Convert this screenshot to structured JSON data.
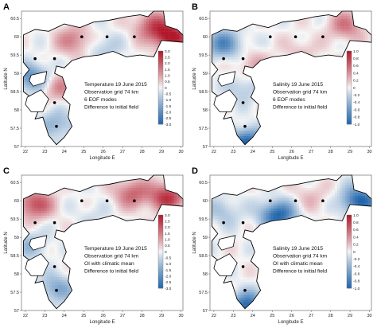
{
  "chart_data": [
    {
      "type": "heatmap",
      "panel_label": "A",
      "annotation": [
        "Temperature 19 June 2015",
        "Observation grid 74 km",
        "6 EOF modes",
        "Difference to initial field"
      ],
      "xlabel": "Longitude E",
      "ylabel": "Latitude N",
      "x_ticks": [
        "22",
        "23",
        "24",
        "25",
        "26",
        "27",
        "28",
        "29",
        "30"
      ],
      "y_ticks": [
        "60.5",
        "60",
        "59.5",
        "59",
        "58.5",
        "58",
        "57.5",
        "57"
      ],
      "xlim": [
        21.8,
        30.1
      ],
      "ylim": [
        57.0,
        60.7
      ],
      "colorbar_ticks": [
        "3.0",
        "2.5",
        "2.0",
        "1.5",
        "1.0",
        "0.5",
        "0",
        "-0.5",
        "-1.0",
        "-1.5",
        "-2.0",
        "-2.5",
        "-3.0"
      ],
      "colorbar_range": [
        -3.0,
        3.0
      ],
      "observation_points": [
        [
          24.9,
          60.0
        ],
        [
          26.2,
          60.0
        ],
        [
          27.6,
          60.0
        ],
        [
          22.5,
          59.4
        ],
        [
          23.5,
          59.4
        ],
        [
          23.5,
          58.2
        ],
        [
          23.6,
          57.55
        ]
      ],
      "field_features": [
        {
          "lon": 29.5,
          "lat": 60.0,
          "value": 3.0
        },
        {
          "lon": 24.5,
          "lat": 59.9,
          "value": 1.5
        },
        {
          "lon": 28.5,
          "lat": 60.3,
          "value": 1.8
        },
        {
          "lon": 22.3,
          "lat": 58.9,
          "value": -2.0
        },
        {
          "lon": 23.8,
          "lat": 58.6,
          "value": 1.2
        },
        {
          "lon": 26.0,
          "lat": 59.7,
          "value": -0.8
        },
        {
          "lon": 23.6,
          "lat": 57.6,
          "value": -1.3
        }
      ]
    },
    {
      "type": "heatmap",
      "panel_label": "B",
      "annotation": [
        "Salinity 19 June 2015",
        "Observation grid 74 km",
        "6 EOF modes",
        "Difference to initial field"
      ],
      "xlabel": "Longitude E",
      "ylabel": "Latitude N",
      "x_ticks": [
        "22",
        "23",
        "24",
        "25",
        "26",
        "27",
        "28",
        "29",
        "30"
      ],
      "y_ticks": [
        "60.5",
        "60",
        "59.5",
        "59",
        "58.5",
        "58",
        "57.5",
        "57"
      ],
      "xlim": [
        21.8,
        30.1
      ],
      "ylim": [
        57.0,
        60.7
      ],
      "colorbar_ticks": [
        "1.0",
        "0.8",
        "0.6",
        "0.4",
        "0.2",
        "0",
        "-0.2",
        "-0.4",
        "-0.6",
        "-0.8",
        "-1.0"
      ],
      "colorbar_range": [
        -1.0,
        1.0
      ],
      "observation_points": [
        [
          24.9,
          60.0
        ],
        [
          26.2,
          60.0
        ],
        [
          27.6,
          60.0
        ],
        [
          22.5,
          59.4
        ],
        [
          23.5,
          59.4
        ],
        [
          23.5,
          58.2
        ],
        [
          23.6,
          57.55
        ]
      ],
      "field_features": [
        {
          "lon": 22.5,
          "lat": 59.8,
          "value": -0.7
        },
        {
          "lon": 28.8,
          "lat": 60.3,
          "value": 0.5
        },
        {
          "lon": 24.0,
          "lat": 59.2,
          "value": 0.3
        },
        {
          "lon": 23.5,
          "lat": 58.6,
          "value": -0.3
        },
        {
          "lon": 23.7,
          "lat": 57.1,
          "value": -1.0
        },
        {
          "lon": 26.5,
          "lat": 59.6,
          "value": 0.2
        }
      ]
    },
    {
      "type": "heatmap",
      "panel_label": "C",
      "annotation": [
        "Temperature 19 June 2015",
        "Observation grid 74 km",
        "OI with climatic mean",
        "Difference to initial field"
      ],
      "xlabel": "Longitude E",
      "ylabel": "Latitude N",
      "x_ticks": [
        "22",
        "23",
        "24",
        "25",
        "26",
        "27",
        "28",
        "29",
        "30"
      ],
      "y_ticks": [
        "60.5",
        "60",
        "59.5",
        "59",
        "58.5",
        "58",
        "57.5",
        "57"
      ],
      "xlim": [
        21.8,
        30.1
      ],
      "ylim": [
        57.0,
        60.7
      ],
      "colorbar_ticks": [
        "3.0",
        "2.5",
        "2.0",
        "1.5",
        "1.0",
        "0.5",
        "0",
        "-0.5",
        "-1.0",
        "-1.5",
        "-2.0",
        "-2.5",
        "-3.0"
      ],
      "colorbar_range": [
        -3.0,
        3.0
      ],
      "observation_points": [
        [
          24.9,
          60.0
        ],
        [
          26.2,
          60.0
        ],
        [
          27.6,
          60.0
        ],
        [
          22.5,
          59.4
        ],
        [
          23.5,
          59.4
        ],
        [
          23.5,
          58.2
        ],
        [
          23.6,
          57.55
        ]
      ],
      "field_features": [
        {
          "lon": 29.3,
          "lat": 60.1,
          "value": 2.5
        },
        {
          "lon": 22.5,
          "lat": 59.9,
          "value": 2.2
        },
        {
          "lon": 27.5,
          "lat": 60.2,
          "value": 1.8
        },
        {
          "lon": 25.5,
          "lat": 59.6,
          "value": -0.4
        },
        {
          "lon": 22.3,
          "lat": 58.8,
          "value": -1.0
        },
        {
          "lon": 23.6,
          "lat": 57.6,
          "value": -1.5
        }
      ]
    },
    {
      "type": "heatmap",
      "panel_label": "D",
      "annotation": [
        "Salinity 19 June 2015",
        "Observation grid 74 km",
        "OI with climatic mean",
        "Difference to initial field"
      ],
      "xlabel": "Longitude E",
      "ylabel": "Latitude N",
      "x_ticks": [
        "22",
        "23",
        "24",
        "25",
        "26",
        "27",
        "28",
        "29",
        "30"
      ],
      "y_ticks": [
        "60.5",
        "60",
        "59.5",
        "59",
        "58.5",
        "58",
        "57.5",
        "57"
      ],
      "xlim": [
        21.8,
        30.1
      ],
      "ylim": [
        57.0,
        60.7
      ],
      "colorbar_ticks": [
        "1.0",
        "0.8",
        "0.6",
        "0.4",
        "0.2",
        "0",
        "-0.2",
        "-0.4",
        "-0.6",
        "-0.8",
        "-1.0"
      ],
      "colorbar_range": [
        -1.0,
        1.0
      ],
      "observation_points": [
        [
          24.9,
          60.0
        ],
        [
          26.2,
          60.0
        ],
        [
          27.6,
          60.0
        ],
        [
          22.5,
          59.4
        ],
        [
          23.5,
          59.4
        ],
        [
          23.5,
          58.2
        ],
        [
          23.6,
          57.55
        ]
      ],
      "field_features": [
        {
          "lon": 29.5,
          "lat": 60.0,
          "value": -1.0
        },
        {
          "lon": 25.3,
          "lat": 59.6,
          "value": -1.0
        },
        {
          "lon": 22.5,
          "lat": 59.7,
          "value": -0.3
        },
        {
          "lon": 27.0,
          "lat": 60.1,
          "value": 0.2
        },
        {
          "lon": 23.7,
          "lat": 57.1,
          "value": -1.0
        }
      ]
    }
  ]
}
